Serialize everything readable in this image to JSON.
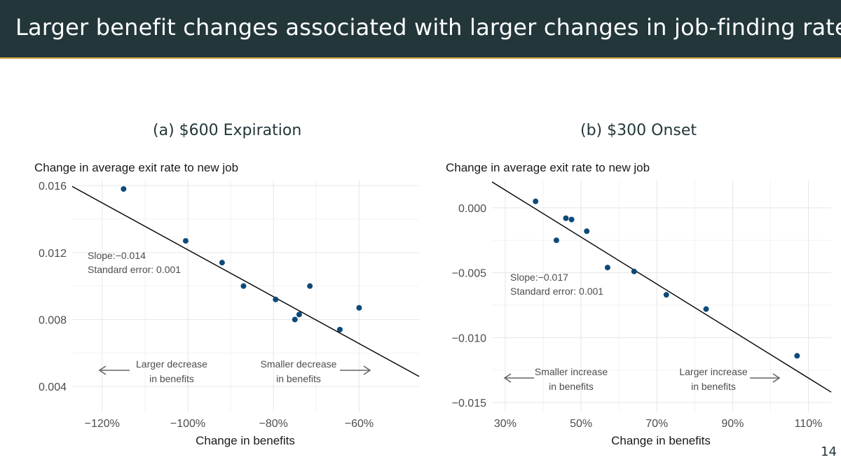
{
  "slide": {
    "title": "Larger benefit changes associated with larger changes in job-finding rate",
    "page_number": "14",
    "colors": {
      "header_bg": "#23373b",
      "header_accent": "#d5a544",
      "point": "#0c4a7a"
    }
  },
  "chart_data": [
    {
      "type": "scatter",
      "panel_label": "(a)",
      "title": "$600 Expiration",
      "ylabel": "Change in average exit rate to new job",
      "xlabel": "Change in benefits",
      "x_unit": "percent",
      "xlim": [
        -127,
        -46
      ],
      "ylim": [
        0.0025,
        0.0163
      ],
      "x_ticks": [
        -120,
        -100,
        -80,
        -60
      ],
      "x_tick_labels": [
        "−120%",
        "−100%",
        "−80%",
        "−60%"
      ],
      "y_ticks": [
        0.004,
        0.008,
        0.012,
        0.016
      ],
      "y_tick_labels": [
        "0.004",
        "0.008",
        "0.012",
        "0.016"
      ],
      "grid": true,
      "points": [
        {
          "x": -115,
          "y": 0.0158
        },
        {
          "x": -100.5,
          "y": 0.0127
        },
        {
          "x": -92,
          "y": 0.0114
        },
        {
          "x": -87,
          "y": 0.01
        },
        {
          "x": -79.5,
          "y": 0.0092
        },
        {
          "x": -75,
          "y": 0.008
        },
        {
          "x": -74,
          "y": 0.0083
        },
        {
          "x": -71.5,
          "y": 0.01
        },
        {
          "x": -64.5,
          "y": 0.0074
        },
        {
          "x": -60,
          "y": 0.0087
        }
      ],
      "fit_line": [
        {
          "x": -127,
          "y": 0.01595
        },
        {
          "x": -46,
          "y": 0.0046
        }
      ],
      "annotation_lines": [
        "Slope:−0.014",
        "Standard error: 0.001"
      ],
      "arrow_labels": {
        "left": [
          "Larger decrease",
          "in benefits"
        ],
        "right": [
          "Smaller decrease",
          "in benefits"
        ]
      }
    },
    {
      "type": "scatter",
      "panel_label": "(b)",
      "title": "$300 Onset",
      "ylabel": "Change in average exit rate to new job",
      "xlabel": "Change in benefits",
      "x_unit": "percent",
      "xlim": [
        26.5,
        116
      ],
      "ylim": [
        -0.0157,
        0.0021
      ],
      "x_ticks": [
        30,
        50,
        70,
        90,
        110
      ],
      "x_tick_labels": [
        "30%",
        "50%",
        "70%",
        "90%",
        "110%"
      ],
      "y_ticks": [
        -0.015,
        -0.01,
        -0.005,
        0.0
      ],
      "y_tick_labels": [
        "−0.015",
        "−0.010",
        "−0.005",
        "0.000"
      ],
      "grid": true,
      "points": [
        {
          "x": 38,
          "y": 0.0005
        },
        {
          "x": 43.5,
          "y": -0.0025
        },
        {
          "x": 46,
          "y": -0.0008
        },
        {
          "x": 47.5,
          "y": -0.0009
        },
        {
          "x": 51.5,
          "y": -0.0018
        },
        {
          "x": 57,
          "y": -0.0046
        },
        {
          "x": 64,
          "y": -0.0049
        },
        {
          "x": 72.5,
          "y": -0.0067
        },
        {
          "x": 83,
          "y": -0.0078
        },
        {
          "x": 107,
          "y": -0.0114
        }
      ],
      "fit_line": [
        {
          "x": 26.5,
          "y": 0.002
        },
        {
          "x": 116,
          "y": -0.0142
        }
      ],
      "annotation_lines": [
        "Slope:−0.017",
        "Standard error: 0.001"
      ],
      "arrow_labels": {
        "left": [
          "Smaller increase",
          "in benefits"
        ],
        "right": [
          "Larger increase",
          "in benefits"
        ]
      }
    }
  ]
}
